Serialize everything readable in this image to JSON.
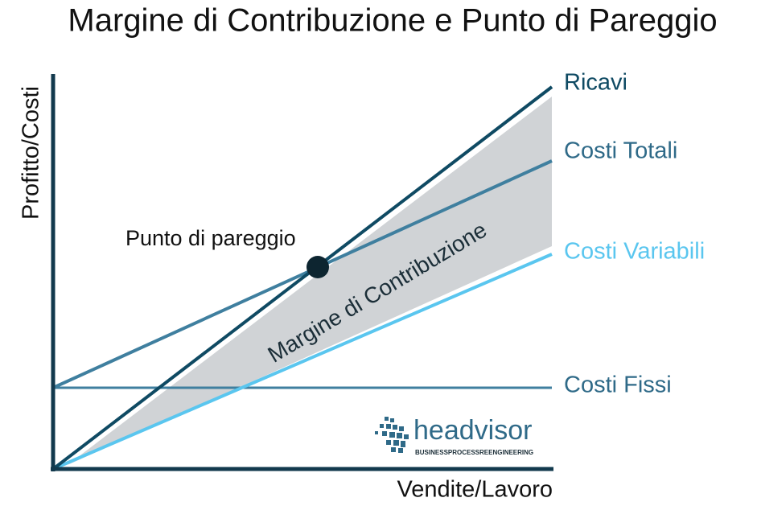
{
  "title": "Margine di Contribuzione e Punto di Pareggio",
  "axes": {
    "y_label": "Profitto/Costi",
    "x_label": "Vendite/Lavoro"
  },
  "lines": [
    {
      "label": "Ricavi"
    },
    {
      "label": "Costi Totali"
    },
    {
      "label": "Costi Variabili"
    },
    {
      "label": "Costi Fissi"
    }
  ],
  "break_even": {
    "label": "Punto di pareggio"
  },
  "area": {
    "label": "Margine di Contribuzione"
  },
  "logo": {
    "name": "headvisor",
    "tagline": "BUSINESSPROCESSREENGINEERING"
  }
}
